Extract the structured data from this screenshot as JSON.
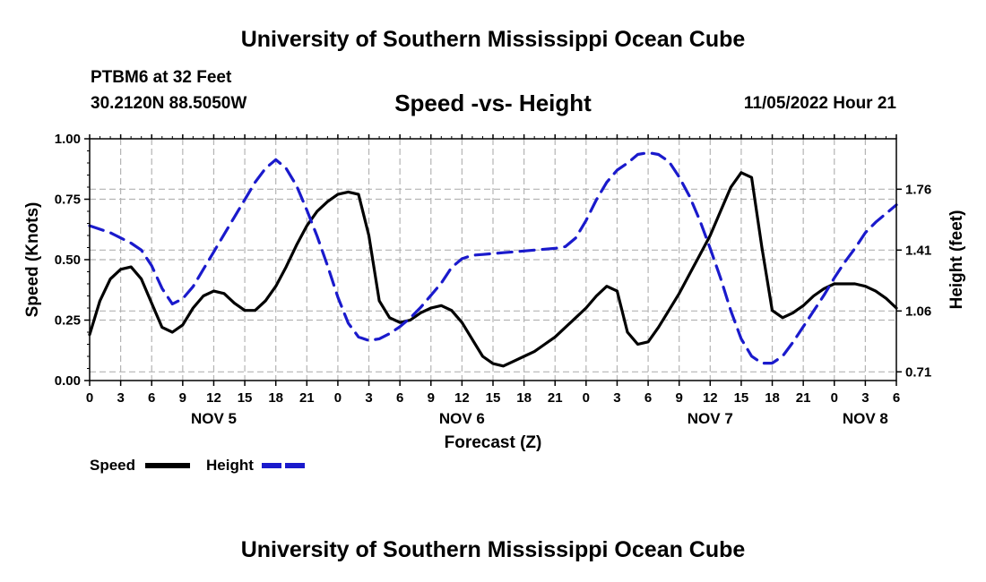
{
  "header": {
    "title": "University of Southern Mississippi Ocean Cube",
    "station": "PTBM6 at 32 Feet",
    "coordinates": "30.2120N  88.5050W",
    "subtitle": "Speed -vs- Height",
    "timestamp": "11/05/2022 Hour 21"
  },
  "footer": {
    "title": "University of Southern Mississippi Ocean Cube"
  },
  "chart_data": {
    "type": "line",
    "xlabel": "Forecast (Z)",
    "ylabel_left": "Speed (Knots)",
    "ylabel_right": "Height (feet)",
    "x_range_hours": [
      0,
      78
    ],
    "ylim_left": [
      0,
      1.0
    ],
    "ylim_right": [
      0.66,
      2.05
    ],
    "y_ticks_left": [
      0.0,
      0.25,
      0.5,
      0.75,
      1.0
    ],
    "y_tick_labels_left": [
      "0.00",
      "0.25",
      "0.50",
      "0.75",
      "1.00"
    ],
    "y_ticks_right": [
      0.71,
      1.06,
      1.41,
      1.76
    ],
    "y_tick_labels_right": [
      "0.71",
      "1.06",
      "1.41",
      "1.76"
    ],
    "x_ticks_hours": [
      0,
      3,
      6,
      9,
      12,
      15,
      18,
      21,
      24,
      27,
      30,
      33,
      36,
      39,
      42,
      45,
      48,
      51,
      54,
      57,
      60,
      63,
      66,
      69,
      72,
      75,
      78
    ],
    "x_tick_labels": [
      "0",
      "3",
      "6",
      "9",
      "12",
      "15",
      "18",
      "21",
      "0",
      "3",
      "6",
      "9",
      "12",
      "15",
      "18",
      "21",
      "0",
      "3",
      "6",
      "9",
      "12",
      "15",
      "18",
      "21",
      "0",
      "3",
      "6"
    ],
    "day_labels": [
      {
        "label": "NOV 5",
        "hour": 12
      },
      {
        "label": "NOV 6",
        "hour": 36
      },
      {
        "label": "NOV 7",
        "hour": 60
      },
      {
        "label": "NOV 8",
        "hour": 75
      }
    ],
    "grid": true,
    "series": [
      {
        "name": "Speed",
        "axis": "left",
        "color": "#000000",
        "dash": "solid",
        "hours": [
          0,
          1,
          2,
          3,
          4,
          5,
          6,
          7,
          8,
          9,
          10,
          11,
          12,
          13,
          14,
          15,
          16,
          17,
          18,
          19,
          20,
          21,
          22,
          23,
          24,
          25,
          26,
          27,
          28,
          29,
          30,
          31,
          32,
          33,
          34,
          35,
          36,
          37,
          38,
          39,
          40,
          41,
          42,
          43,
          44,
          45,
          46,
          47,
          48,
          49,
          50,
          51,
          52,
          53,
          54,
          55,
          56,
          57,
          58,
          59,
          60,
          61,
          62,
          63,
          64,
          65,
          66,
          67,
          68,
          69,
          70,
          71,
          72,
          73,
          74,
          75,
          76,
          77,
          78
        ],
        "values": [
          0.19,
          0.33,
          0.42,
          0.46,
          0.47,
          0.42,
          0.32,
          0.22,
          0.2,
          0.23,
          0.3,
          0.35,
          0.37,
          0.36,
          0.32,
          0.29,
          0.29,
          0.33,
          0.39,
          0.47,
          0.56,
          0.64,
          0.7,
          0.74,
          0.77,
          0.78,
          0.77,
          0.6,
          0.33,
          0.26,
          0.24,
          0.25,
          0.28,
          0.3,
          0.31,
          0.29,
          0.24,
          0.17,
          0.1,
          0.07,
          0.06,
          0.08,
          0.1,
          0.12,
          0.15,
          0.18,
          0.22,
          0.26,
          0.3,
          0.35,
          0.39,
          0.37,
          0.2,
          0.15,
          0.16,
          0.22,
          0.29,
          0.36,
          0.44,
          0.52,
          0.6,
          0.7,
          0.8,
          0.86,
          0.84,
          0.55,
          0.29,
          0.26,
          0.28,
          0.31,
          0.35,
          0.38,
          0.4,
          0.4,
          0.4,
          0.39,
          0.37,
          0.34,
          0.3
        ]
      },
      {
        "name": "Height",
        "axis": "right",
        "color": "#1a1acc",
        "dash": "dashed",
        "hours": [
          0,
          1,
          2,
          3,
          4,
          5,
          6,
          7,
          8,
          9,
          10,
          11,
          12,
          13,
          14,
          15,
          16,
          17,
          18,
          19,
          20,
          21,
          22,
          23,
          24,
          25,
          26,
          27,
          28,
          29,
          30,
          31,
          32,
          33,
          34,
          35,
          36,
          37,
          38,
          39,
          40,
          41,
          42,
          43,
          44,
          45,
          46,
          47,
          48,
          49,
          50,
          51,
          52,
          53,
          54,
          55,
          56,
          57,
          58,
          59,
          60,
          61,
          62,
          63,
          64,
          65,
          66,
          67,
          68,
          69,
          70,
          71,
          72,
          73,
          74,
          75,
          76,
          77,
          78
        ],
        "values": [
          1.55,
          1.53,
          1.51,
          1.48,
          1.45,
          1.41,
          1.32,
          1.19,
          1.1,
          1.13,
          1.2,
          1.3,
          1.4,
          1.5,
          1.6,
          1.7,
          1.8,
          1.88,
          1.93,
          1.88,
          1.78,
          1.64,
          1.49,
          1.32,
          1.14,
          0.99,
          0.91,
          0.89,
          0.9,
          0.93,
          0.97,
          1.02,
          1.08,
          1.15,
          1.22,
          1.31,
          1.36,
          1.38,
          1.385,
          1.39,
          1.395,
          1.4,
          1.405,
          1.41,
          1.415,
          1.42,
          1.43,
          1.48,
          1.58,
          1.7,
          1.8,
          1.87,
          1.91,
          1.96,
          1.97,
          1.96,
          1.92,
          1.83,
          1.72,
          1.58,
          1.42,
          1.25,
          1.06,
          0.9,
          0.8,
          0.76,
          0.76,
          0.8,
          0.88,
          0.97,
          1.06,
          1.15,
          1.25,
          1.34,
          1.42,
          1.51,
          1.57,
          1.62,
          1.67
        ]
      }
    ]
  },
  "legend": {
    "items": [
      {
        "label": "Speed",
        "color": "#000000"
      },
      {
        "label": "Height",
        "color": "#1a1acc"
      }
    ]
  }
}
